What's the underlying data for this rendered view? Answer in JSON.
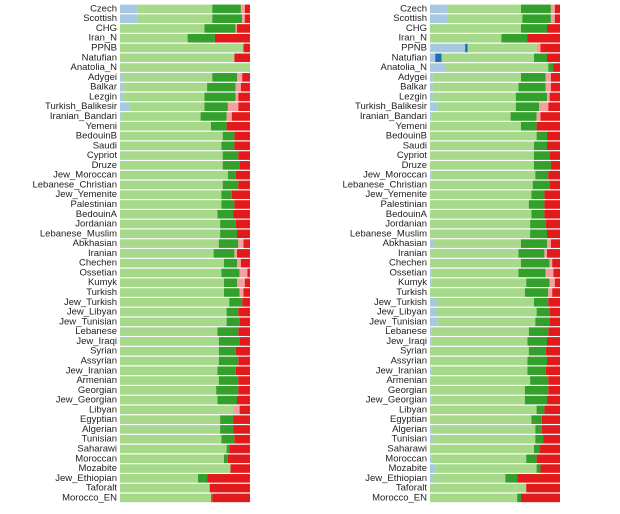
{
  "chart_data": [
    {
      "type": "bar",
      "orientation": "horizontal",
      "stacked": true,
      "categories": [
        "Czech",
        "Scottish",
        "CHG",
        "Iran_N",
        "PPNB",
        "Natufian",
        "Anatolia_N",
        "Adygei",
        "Balkar",
        "Lezgin",
        "Turkish_Balikesir",
        "Iranian_Bandari",
        "Yemeni",
        "BedouinB",
        "Saudi",
        "Cypriot",
        "Druze",
        "Jew_Moroccan",
        "Lebanese_Christian",
        "Jew_Yemenite",
        "Palestinian",
        "BedouinA",
        "Jordanian",
        "Lebanese_Muslim",
        "Abkhasian",
        "Iranian",
        "Chechen",
        "Ossetian",
        "Kumyk",
        "Turkish",
        "Jew_Turkish",
        "Jew_Libyan",
        "Jew_Tunisian",
        "Lebanese",
        "Jew_Iraqi",
        "Syrian",
        "Assyrian",
        "Jew_Iranian",
        "Armenian",
        "Georgian",
        "Jew_Georgian",
        "Libyan",
        "Egyptian",
        "Algerian",
        "Tunisian",
        "Saharawi",
        "Moroccan",
        "Mozabite",
        "Jew_Ethiopian",
        "Taforalt",
        "Morocco_EN"
      ],
      "series": [
        {
          "color": "#a6c8e0",
          "values": [
            13,
            13,
            0,
            0,
            0,
            0,
            0,
            2,
            3,
            3,
            7,
            1,
            0,
            0,
            0,
            0,
            0,
            0,
            0,
            0,
            0,
            0,
            0,
            0,
            0,
            0,
            0,
            0,
            0,
            0,
            0,
            0,
            0,
            0,
            0,
            0,
            0,
            0,
            0,
            0,
            0,
            0,
            0,
            0,
            0,
            0,
            0,
            0,
            0,
            0,
            0
          ]
        },
        {
          "color": "#a6d98a",
          "values": [
            58,
            58,
            65,
            52,
            95,
            88,
            100,
            69,
            64,
            62,
            58,
            61,
            70,
            79,
            78,
            79,
            79,
            83,
            79,
            78,
            78,
            75,
            77,
            77,
            76,
            72,
            80,
            78,
            80,
            80,
            84,
            82,
            82,
            75,
            76,
            76,
            76,
            75,
            76,
            74,
            75,
            87,
            77,
            77,
            78,
            82,
            80,
            85,
            60,
            69,
            70
          ]
        },
        {
          "color": "#33a02c",
          "values": [
            22,
            23,
            24,
            21,
            0,
            0,
            0,
            19,
            22,
            24,
            18,
            20,
            12,
            9,
            10,
            12,
            13,
            6,
            12,
            8,
            10,
            12,
            12,
            13,
            15,
            16,
            10,
            14,
            10,
            12,
            10,
            9,
            10,
            16,
            16,
            13,
            15,
            14,
            15,
            17,
            15,
            0,
            10,
            10,
            10,
            2,
            3,
            0,
            7,
            0,
            1
          ]
        },
        {
          "color": "#f4a0a0",
          "values": [
            3,
            2,
            1,
            0,
            0,
            0,
            0,
            4,
            4,
            2,
            8,
            4,
            0,
            0,
            0,
            0,
            0,
            0,
            0,
            0,
            0,
            0,
            0,
            0,
            4,
            2,
            3,
            6,
            6,
            3,
            0,
            0,
            0,
            0,
            0,
            0,
            0,
            0,
            0,
            0,
            0,
            5,
            0,
            0,
            0,
            0,
            0,
            0,
            0,
            0,
            0
          ]
        },
        {
          "color": "#e31a1c",
          "values": [
            4,
            4,
            10,
            27,
            5,
            12,
            0,
            6,
            7,
            9,
            9,
            14,
            18,
            12,
            12,
            9,
            8,
            11,
            9,
            14,
            12,
            13,
            11,
            10,
            5,
            10,
            7,
            2,
            4,
            5,
            6,
            9,
            8,
            9,
            8,
            11,
            9,
            11,
            9,
            9,
            10,
            8,
            13,
            13,
            12,
            16,
            17,
            15,
            33,
            31,
            29
          ]
        }
      ]
    },
    {
      "type": "bar",
      "orientation": "horizontal",
      "stacked": true,
      "categories": [
        "Czech",
        "Scottish",
        "CHG",
        "Iran_N",
        "PPNB",
        "Natufian",
        "Anatolia_N",
        "Adygei",
        "Balkar",
        "Lezgin",
        "Turkish_Balikesir",
        "Iranian_Bandari",
        "Yemeni",
        "BedouinB",
        "Saudi",
        "Cypriot",
        "Druze",
        "Jew_Moroccan",
        "Lebanese_Christian",
        "Jew_Yemenite",
        "Palestinian",
        "BedouinA",
        "Jordanian",
        "Lebanese_Muslim",
        "Abkhasian",
        "Iranian",
        "Chechen",
        "Ossetian",
        "Kumyk",
        "Turkish",
        "Jew_Turkish",
        "Jew_Libyan",
        "Jew_Tunisian",
        "Lebanese",
        "Jew_Iraqi",
        "Syrian",
        "Assyrian",
        "Jew_Iranian",
        "Armenian",
        "Georgian",
        "Jew_Georgian",
        "Libyan",
        "Egyptian",
        "Algerian",
        "Tunisian",
        "Saharawi",
        "Moroccan",
        "Mozabite",
        "Jew_Ethiopian",
        "Taforalt",
        "Morocco_EN"
      ],
      "series": [
        {
          "color": "#a6c8e0",
          "values": [
            13,
            13,
            0,
            0,
            27,
            4,
            12,
            2,
            2,
            2,
            6,
            1,
            0,
            0,
            0,
            0,
            0,
            1,
            0,
            0,
            0,
            0,
            0,
            0,
            3,
            0,
            0,
            1,
            1,
            0,
            5,
            5,
            6,
            1,
            1,
            0,
            0,
            1,
            0,
            0,
            1,
            0,
            0,
            1,
            2,
            0,
            1,
            4,
            2,
            0,
            0
          ]
        },
        {
          "color": "#1f6fb4",
          "values": [
            0,
            0,
            0,
            0,
            2,
            5,
            0,
            0,
            0,
            0,
            0,
            0,
            0,
            0,
            0,
            0,
            0,
            0,
            0,
            0,
            0,
            0,
            0,
            0,
            0,
            0,
            0,
            0,
            0,
            0,
            0,
            0,
            0,
            0,
            0,
            0,
            0,
            0,
            0,
            0,
            0,
            0,
            0,
            0,
            0,
            0,
            0,
            0,
            0,
            0,
            0
          ]
        },
        {
          "color": "#a6d98a",
          "values": [
            57,
            58,
            70,
            55,
            53,
            71,
            79,
            68,
            66,
            64,
            60,
            61,
            70,
            82,
            80,
            80,
            80,
            80,
            79,
            78,
            76,
            78,
            77,
            77,
            67,
            68,
            70,
            67,
            73,
            73,
            75,
            77,
            75,
            75,
            74,
            76,
            75,
            74,
            77,
            73,
            72,
            82,
            78,
            80,
            79,
            80,
            73,
            78,
            56,
            74,
            67
          ]
        },
        {
          "color": "#33a02c",
          "values": [
            23,
            22,
            20,
            20,
            0,
            10,
            4,
            19,
            21,
            24,
            18,
            20,
            12,
            8,
            10,
            12,
            13,
            10,
            13,
            10,
            12,
            10,
            12,
            13,
            20,
            20,
            22,
            21,
            18,
            18,
            11,
            10,
            11,
            15,
            15,
            13,
            15,
            14,
            14,
            18,
            17,
            6,
            8,
            5,
            6,
            4,
            8,
            3,
            9,
            0,
            3
          ]
        },
        {
          "color": "#f4a0a0",
          "values": [
            3,
            3,
            0,
            0,
            3,
            0,
            0,
            4,
            4,
            2,
            7,
            3,
            0,
            0,
            0,
            0,
            0,
            0,
            0,
            0,
            0,
            0,
            0,
            0,
            3,
            2,
            2,
            6,
            4,
            3,
            0,
            0,
            0,
            0,
            0,
            0,
            0,
            0,
            0,
            0,
            0,
            0,
            0,
            0,
            0,
            0,
            0,
            0,
            0,
            0,
            0
          ]
        },
        {
          "color": "#e31a1c",
          "values": [
            4,
            4,
            10,
            25,
            15,
            10,
            5,
            7,
            7,
            8,
            9,
            15,
            18,
            10,
            10,
            8,
            7,
            9,
            8,
            12,
            12,
            12,
            11,
            10,
            7,
            10,
            6,
            5,
            4,
            6,
            9,
            8,
            8,
            9,
            10,
            11,
            10,
            11,
            9,
            9,
            10,
            12,
            14,
            14,
            13,
            16,
            18,
            15,
            33,
            26,
            30
          ]
        }
      ]
    }
  ]
}
